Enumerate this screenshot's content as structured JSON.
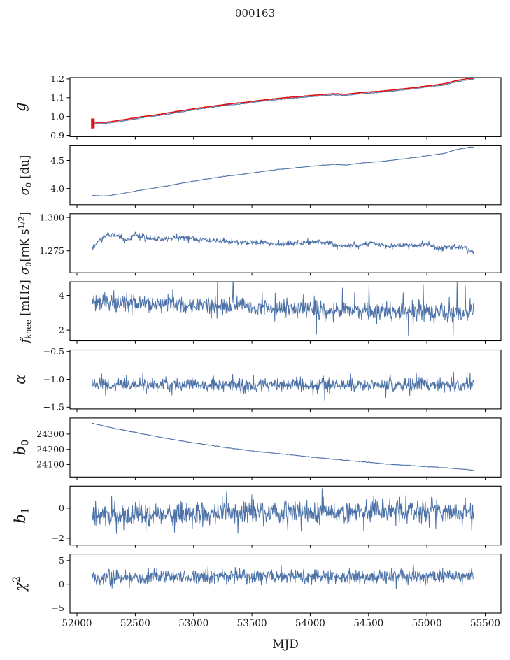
{
  "title": "000163",
  "figure": {
    "bg": "#ffffff",
    "palette": {
      "blue": "#4c72a8",
      "red": "#e01212",
      "spine": "#000000",
      "tick_text": "#1a1a1a"
    },
    "xlabel": "MJD",
    "xlim": [
      51940,
      55635
    ],
    "xticks": [
      52000,
      52500,
      53000,
      53500,
      54000,
      54500,
      55000,
      55500
    ],
    "xtick_labels": [
      "52000",
      "52500",
      "53000",
      "53500",
      "54000",
      "54500",
      "55000",
      "55500"
    ],
    "x_data_range": [
      52130,
      55400
    ],
    "grid": false,
    "legend": null
  },
  "chart_data": [
    {
      "name": "g",
      "type": "line",
      "ylabel": [
        {
          "t": "g",
          "i": 1
        }
      ],
      "ylim": [
        0.893,
        1.207
      ],
      "yticks": [
        {
          "v": 0.9,
          "l": "0.9"
        },
        {
          "v": 1.0,
          "l": "1.0"
        },
        {
          "v": 1.1,
          "l": "1.1"
        },
        {
          "v": 1.2,
          "l": "1.2"
        }
      ],
      "series": [
        {
          "name": "gain-data",
          "color": "blue",
          "width": 1.1,
          "n": 520,
          "sigma": 0.0011,
          "seed": 11,
          "trend": [
            [
              52130,
              0.967
            ],
            [
              52180,
              0.961
            ],
            [
              52260,
              0.964
            ],
            [
              52400,
              0.977
            ],
            [
              52550,
              0.992
            ],
            [
              52700,
              1.005
            ],
            [
              52850,
              1.02
            ],
            [
              53000,
              1.035
            ],
            [
              53150,
              1.048
            ],
            [
              53300,
              1.06
            ],
            [
              53450,
              1.07
            ],
            [
              53600,
              1.082
            ],
            [
              53750,
              1.092
            ],
            [
              53900,
              1.1
            ],
            [
              54050,
              1.108
            ],
            [
              54200,
              1.115
            ],
            [
              54300,
              1.112
            ],
            [
              54450,
              1.122
            ],
            [
              54600,
              1.128
            ],
            [
              54750,
              1.138
            ],
            [
              54900,
              1.148
            ],
            [
              55050,
              1.16
            ],
            [
              55150,
              1.168
            ],
            [
              55250,
              1.185
            ],
            [
              55350,
              1.195
            ],
            [
              55400,
              1.198
            ]
          ]
        },
        {
          "name": "gain-model",
          "color": "red",
          "width": 1.6,
          "n": 520,
          "sigma": 0.0005,
          "seed": 12,
          "offset": 0.006
        }
      ],
      "errorbar_cluster": {
        "color": "red",
        "x0": 52126,
        "x1": 52164,
        "count": 11,
        "y": 0.963,
        "err_min": 0.012,
        "err_max": 0.03,
        "seed": 99
      }
    },
    {
      "name": "sigma0-du",
      "type": "line",
      "ylabel": [
        {
          "t": "σ",
          "i": 1
        },
        {
          "t": "0",
          "sub": 1
        },
        {
          "t": " [du]"
        }
      ],
      "ylim": [
        3.712,
        4.763
      ],
      "yticks": [
        {
          "v": 4.0,
          "l": "4.0"
        },
        {
          "v": 4.5,
          "l": "4.5"
        }
      ],
      "series": [
        {
          "name": "sigma0-du-data",
          "color": "blue",
          "width": 1.1,
          "n": 520,
          "sigma": 0.003,
          "seed": 21,
          "trend": [
            [
              52130,
              3.877
            ],
            [
              52260,
              3.866
            ],
            [
              52400,
              3.915
            ],
            [
              52550,
              3.971
            ],
            [
              52700,
              4.019
            ],
            [
              52850,
              4.075
            ],
            [
              53000,
              4.131
            ],
            [
              53150,
              4.18
            ],
            [
              53300,
              4.224
            ],
            [
              53450,
              4.262
            ],
            [
              53600,
              4.306
            ],
            [
              53750,
              4.344
            ],
            [
              53900,
              4.374
            ],
            [
              54050,
              4.403
            ],
            [
              54200,
              4.43
            ],
            [
              54300,
              4.418
            ],
            [
              54450,
              4.456
            ],
            [
              54600,
              4.478
            ],
            [
              54750,
              4.515
            ],
            [
              54900,
              4.553
            ],
            [
              55050,
              4.597
            ],
            [
              55150,
              4.627
            ],
            [
              55250,
              4.691
            ],
            [
              55350,
              4.728
            ],
            [
              55400,
              4.739
            ]
          ]
        }
      ]
    },
    {
      "name": "sigma0-mK",
      "type": "line",
      "ylabel": [
        {
          "t": "σ",
          "i": 1
        },
        {
          "t": "0",
          "sub": 1
        },
        {
          "t": "["
        },
        {
          "t": "mK s",
          "f": "s"
        },
        {
          "t": "1/2",
          "sup": 1,
          "f": "s"
        },
        {
          "t": "]"
        }
      ],
      "ylim": [
        1.2585,
        1.3028
      ],
      "yticks": [
        {
          "v": 1.275,
          "l": "1.275"
        },
        {
          "v": 1.3,
          "l": "1.300"
        }
      ],
      "series": [
        {
          "name": "sigma0-mK-data",
          "color": "blue",
          "width": 1.0,
          "n": 880,
          "sigma": 0.0011,
          "seed": 31,
          "trend": [
            [
              52130,
              1.276
            ],
            [
              52200,
              1.2838
            ],
            [
              52280,
              1.2875
            ],
            [
              52350,
              1.2868
            ],
            [
              52420,
              1.282
            ],
            [
              52500,
              1.2875
            ],
            [
              52600,
              1.284
            ],
            [
              52700,
              1.2838
            ],
            [
              52800,
              1.2842
            ],
            [
              52950,
              1.285
            ],
            [
              53100,
              1.2828
            ],
            [
              53250,
              1.2822
            ],
            [
              53400,
              1.2815
            ],
            [
              53550,
              1.2818
            ],
            [
              53700,
              1.28
            ],
            [
              53900,
              1.281
            ],
            [
              54100,
              1.2818
            ],
            [
              54250,
              1.2785
            ],
            [
              54400,
              1.279
            ],
            [
              54550,
              1.281
            ],
            [
              54700,
              1.2782
            ],
            [
              54850,
              1.279
            ],
            [
              55000,
              1.2798
            ],
            [
              55100,
              1.2772
            ],
            [
              55200,
              1.2775
            ],
            [
              55300,
              1.2782
            ],
            [
              55400,
              1.2735
            ]
          ]
        }
      ]
    },
    {
      "name": "fknee",
      "type": "line",
      "ylabel": [
        {
          "t": "f",
          "i": 1
        },
        {
          "t": "knee",
          "sub": 1,
          "f": "s"
        },
        {
          "t": " [mHz]"
        }
      ],
      "ylim": [
        1.38,
        4.78
      ],
      "yticks": [
        {
          "v": 2,
          "l": "2"
        },
        {
          "v": 4,
          "l": "4"
        }
      ],
      "series": [
        {
          "name": "fknee-data",
          "color": "blue",
          "width": 1.0,
          "n": 880,
          "sigma": 0.26,
          "seed": 41,
          "spikes": {
            "p": 0.035,
            "lo": 0.5,
            "hi": 1.6,
            "pos_frac": 0.75
          },
          "trend": [
            [
              52130,
              3.62
            ],
            [
              52300,
              3.55
            ],
            [
              52500,
              3.52
            ],
            [
              52800,
              3.48
            ],
            [
              53100,
              3.42
            ],
            [
              53400,
              3.38
            ],
            [
              53700,
              3.32
            ],
            [
              54000,
              3.22
            ],
            [
              54300,
              3.15
            ],
            [
              54600,
              3.08
            ],
            [
              54900,
              3.05
            ],
            [
              55200,
              3.0
            ],
            [
              55400,
              2.95
            ]
          ]
        }
      ]
    },
    {
      "name": "alpha",
      "type": "line",
      "ylabel": [
        {
          "t": "α",
          "i": 1
        }
      ],
      "ylim": [
        -1.532,
        -0.472
      ],
      "yticks": [
        {
          "v": -1.5,
          "l": "−1.5"
        },
        {
          "v": -1.0,
          "l": "−1.0"
        },
        {
          "v": -0.5,
          "l": "−0.5"
        }
      ],
      "series": [
        {
          "name": "alpha-data",
          "color": "blue",
          "width": 1.0,
          "n": 880,
          "sigma": 0.06,
          "seed": 51,
          "spikes": {
            "p": 0.025,
            "lo": 0.08,
            "hi": 0.2,
            "pos_frac": 0.5
          },
          "trend": [
            [
              52130,
              -1.09
            ],
            [
              52500,
              -1.105
            ],
            [
              53000,
              -1.1
            ],
            [
              53500,
              -1.105
            ],
            [
              54000,
              -1.1
            ],
            [
              54500,
              -1.105
            ],
            [
              55000,
              -1.1
            ],
            [
              55400,
              -1.095
            ]
          ]
        }
      ]
    },
    {
      "name": "b0",
      "type": "line",
      "ylabel": [
        {
          "t": "b",
          "i": 1
        },
        {
          "t": "0",
          "sub": 1
        }
      ],
      "ylim": [
        24018,
        24406
      ],
      "yticks": [
        {
          "v": 24100,
          "l": "24100"
        },
        {
          "v": 24200,
          "l": "24200"
        },
        {
          "v": 24300,
          "l": "24300"
        }
      ],
      "series": [
        {
          "name": "b0-data",
          "color": "blue",
          "width": 1.1,
          "n": 520,
          "sigma": 1.1,
          "seed": 61,
          "trend": [
            [
              52130,
              24372
            ],
            [
              52300,
              24341
            ],
            [
              52500,
              24311
            ],
            [
              52750,
              24274
            ],
            [
              53000,
              24243
            ],
            [
              53250,
              24214
            ],
            [
              53530,
              24186
            ],
            [
              53800,
              24166
            ],
            [
              54100,
              24142
            ],
            [
              54400,
              24121
            ],
            [
              54700,
              24101
            ],
            [
              55000,
              24086
            ],
            [
              55200,
              24076
            ],
            [
              55350,
              24066
            ],
            [
              55400,
              24062
            ]
          ]
        }
      ]
    },
    {
      "name": "b1",
      "type": "line",
      "ylabel": [
        {
          "t": "b",
          "i": 1
        },
        {
          "t": "1",
          "sub": 1
        }
      ],
      "ylim": [
        -2.45,
        1.47
      ],
      "yticks": [
        {
          "v": -2,
          "l": "−2"
        },
        {
          "v": 0,
          "l": "0"
        }
      ],
      "series": [
        {
          "name": "b1-data",
          "color": "blue",
          "width": 1.0,
          "n": 880,
          "sigma": 0.4,
          "seed": 71,
          "spikes": {
            "p": 0.02,
            "lo": 0.5,
            "hi": 1.3,
            "pos_frac": 0.45
          },
          "trend": [
            [
              52130,
              -0.42
            ],
            [
              52400,
              -0.5
            ],
            [
              52700,
              -0.45
            ],
            [
              53000,
              -0.4
            ],
            [
              53300,
              -0.35
            ],
            [
              53700,
              -0.3
            ],
            [
              54100,
              -0.28
            ],
            [
              54500,
              -0.22
            ],
            [
              54800,
              -0.2
            ],
            [
              55100,
              -0.17
            ],
            [
              55400,
              -0.28
            ]
          ]
        }
      ]
    },
    {
      "name": "chi2",
      "type": "line",
      "ylabel": [
        {
          "t": "χ",
          "i": 1
        },
        {
          "t": "2",
          "sup": 1
        }
      ],
      "ylim": [
        -6.1,
        6.35
      ],
      "yticks": [
        {
          "v": -5,
          "l": "−5"
        },
        {
          "v": 0,
          "l": "0"
        },
        {
          "v": 5,
          "l": "5"
        }
      ],
      "series": [
        {
          "name": "chi2-data",
          "color": "blue",
          "width": 1.0,
          "n": 880,
          "sigma": 0.75,
          "seed": 81,
          "spikes": {
            "p": 0.02,
            "lo": 1.0,
            "hi": 2.2,
            "pos_frac": 0.5
          },
          "trend": [
            [
              52130,
              1.3
            ],
            [
              52500,
              1.5
            ],
            [
              53000,
              1.6
            ],
            [
              53500,
              1.7
            ],
            [
              54000,
              1.6
            ],
            [
              54500,
              1.65
            ],
            [
              55000,
              1.75
            ],
            [
              55300,
              1.9
            ],
            [
              55400,
              2.0
            ]
          ]
        }
      ]
    }
  ]
}
